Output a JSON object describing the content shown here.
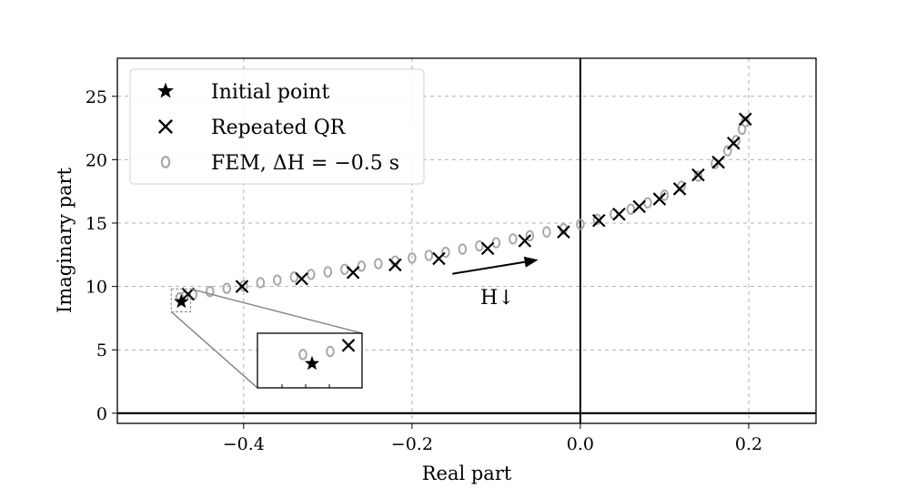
{
  "chart_data": {
    "type": "scatter",
    "title": "",
    "xlabel": "Real part",
    "ylabel": "Imaginary part",
    "xlim": [
      -0.55,
      0.28
    ],
    "ylim": [
      -0.8,
      28
    ],
    "xticks": [
      -0.4,
      -0.2,
      0.0,
      0.2
    ],
    "xtick_labels": [
      "−0.4",
      "−0.2",
      "0.0",
      "0.2"
    ],
    "yticks": [
      0,
      5,
      10,
      15,
      20,
      25
    ],
    "ytick_labels": [
      "0",
      "5",
      "10",
      "15",
      "20",
      "25"
    ],
    "grid": true,
    "reference_lines": {
      "x": 0,
      "y": 0
    },
    "legend_position": "top-left",
    "series": [
      {
        "name": "Initial point",
        "marker": "star",
        "color": "#000000",
        "x": [
          -0.474
        ],
        "y": [
          8.8
        ]
      },
      {
        "name": "Repeated QR",
        "marker": "x",
        "color": "#000000",
        "x": [
          -0.466,
          -0.402,
          -0.331,
          -0.27,
          -0.22,
          -0.168,
          -0.11,
          -0.066,
          -0.02,
          0.022,
          0.046,
          0.07,
          0.094,
          0.118,
          0.14,
          0.164,
          0.182,
          0.196
        ],
        "y": [
          9.4,
          10.0,
          10.6,
          11.1,
          11.7,
          12.2,
          13.0,
          13.6,
          14.3,
          15.2,
          15.7,
          16.3,
          16.9,
          17.7,
          18.8,
          19.8,
          21.3,
          23.2
        ]
      },
      {
        "name": "FEM, ΔH = −0.5 s",
        "marker": "circle-open",
        "color": "#a8a8a8",
        "x": [
          -0.476,
          -0.47,
          -0.46,
          -0.44,
          -0.42,
          -0.4,
          -0.38,
          -0.36,
          -0.34,
          -0.32,
          -0.3,
          -0.28,
          -0.26,
          -0.24,
          -0.22,
          -0.2,
          -0.18,
          -0.16,
          -0.14,
          -0.12,
          -0.1,
          -0.08,
          -0.06,
          -0.04,
          -0.02,
          0.0,
          0.02,
          0.04,
          0.06,
          0.08,
          0.1,
          0.12,
          0.14,
          0.16,
          0.175,
          0.185,
          0.192,
          0.196
        ],
        "y": [
          9.1,
          9.2,
          9.35,
          9.6,
          9.85,
          10.05,
          10.3,
          10.5,
          10.75,
          10.95,
          11.15,
          11.35,
          11.6,
          11.8,
          12.0,
          12.25,
          12.45,
          12.7,
          12.95,
          13.2,
          13.45,
          13.75,
          14.0,
          14.3,
          14.55,
          14.9,
          15.3,
          15.7,
          16.1,
          16.6,
          17.2,
          17.9,
          18.7,
          19.7,
          20.7,
          21.5,
          22.4,
          23.0
        ]
      }
    ],
    "annotations": [
      {
        "text": "H↓",
        "arrow_from": [
          -0.152,
          11.0
        ],
        "arrow_to": [
          -0.05,
          12.1
        ]
      }
    ],
    "inset": {
      "description_free": true,
      "source_rect": {
        "x": [
          -0.486,
          -0.463
        ],
        "y": [
          8.0,
          9.8
        ]
      }
    }
  }
}
